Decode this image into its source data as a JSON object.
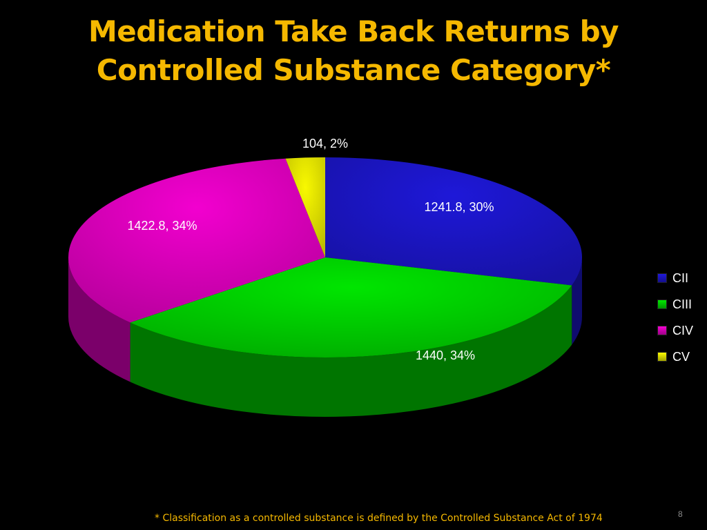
{
  "slide": {
    "title_line1": "Medication Take Back Returns by",
    "title_line2": "Controlled Substance Category*",
    "footnote": "* Classification as a controlled substance is defined by the Controlled Substance Act of  1974",
    "page_number": "8"
  },
  "chart_data": {
    "type": "pie",
    "title": "Medication Take Back Returns by Controlled Substance Category*",
    "legend_position": "right",
    "three_d": true,
    "slices": [
      {
        "name": "CII",
        "value": 1241.8,
        "percent": 30,
        "color": "#1c16c8",
        "label": "1241.8, 30%"
      },
      {
        "name": "CIII",
        "value": 1440,
        "percent": 34,
        "color": "#00d400",
        "label": "1440, 34%"
      },
      {
        "name": "CIV",
        "value": 1422.8,
        "percent": 34,
        "color": "#e000c0",
        "label": "1422.8, 34%"
      },
      {
        "name": "CV",
        "value": 104,
        "percent": 2,
        "color": "#e6e600",
        "label": "104, 2%"
      }
    ]
  }
}
